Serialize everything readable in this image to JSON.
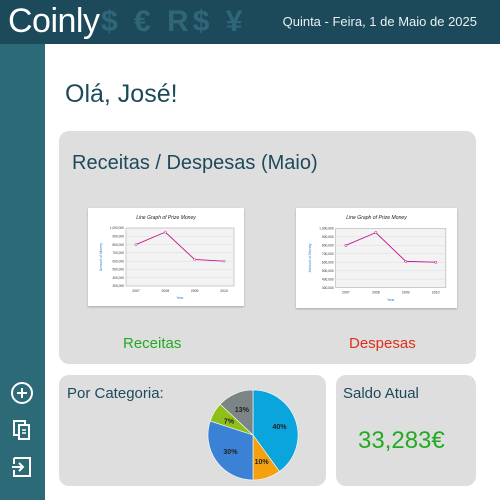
{
  "app": {
    "logo": "Coinly",
    "currency_symbols": "$ € R$ ¥",
    "date": "Quinta - Feira, 1 de Maio de 2025"
  },
  "sidebar": {
    "items": [
      {
        "icon": "add-circle-icon",
        "label": "Adicionar"
      },
      {
        "icon": "copy-icon",
        "label": "Copiar"
      },
      {
        "icon": "logout-icon",
        "label": "Sair"
      }
    ]
  },
  "main": {
    "greeting": "Olá, José!",
    "chart_card": {
      "title": "Receitas / Despesas (Maio)",
      "receitas_label": "Receitas",
      "despesas_label": "Despesas",
      "receitas_color": "#22aa22",
      "despesas_color": "#e02d1c"
    },
    "category_card": {
      "title": "Por Categoria:"
    },
    "saldo_card": {
      "title": "Saldo Atual",
      "value": "33,283€",
      "value_color": "#22aa22"
    }
  },
  "chart_data": [
    {
      "type": "line",
      "title": "Line Graph of Prize Money",
      "xlabel": "Year",
      "ylabel": "Amount of Money",
      "x": [
        "2007",
        "2008",
        "2009",
        "2010"
      ],
      "series": [
        {
          "values": [
            800000,
            950000,
            620000,
            600000
          ]
        }
      ],
      "y_ticks": [
        "1,000,000",
        "900,000",
        "800,000",
        "700,000",
        "600,000",
        "500,000",
        "400,000",
        "300,000"
      ],
      "ylim": [
        300000,
        1000000
      ],
      "grid": true
    },
    {
      "type": "line",
      "title": "Line Graph of Prize Money",
      "xlabel": "Year",
      "ylabel": "Amount of Money",
      "x": [
        "2007",
        "2008",
        "2009",
        "2010"
      ],
      "series": [
        {
          "values": [
            800000,
            950000,
            610000,
            600000
          ]
        }
      ],
      "y_ticks": [
        "1,000,000",
        "900,000",
        "800,000",
        "700,000",
        "600,000",
        "500,000",
        "400,000",
        "300,000"
      ],
      "ylim": [
        300000,
        1000000
      ],
      "grid": true
    },
    {
      "type": "pie",
      "slices": [
        {
          "label": "40%",
          "value": 40,
          "color": "#0aa5dc"
        },
        {
          "label": "10%",
          "value": 10,
          "color": "#f5a00f"
        },
        {
          "label": "30%",
          "value": 30,
          "color": "#3b82d6"
        },
        {
          "label": "7%",
          "value": 7,
          "color": "#8fbf19"
        },
        {
          "label": "13%",
          "value": 13,
          "color": "#7c8585"
        }
      ]
    }
  ]
}
